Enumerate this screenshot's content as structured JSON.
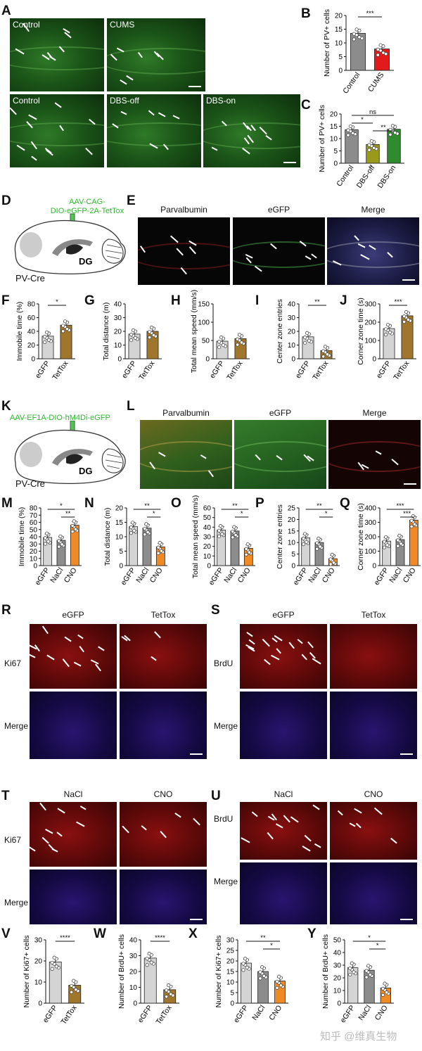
{
  "panel_letters": {
    "A": "A",
    "B": "B",
    "C": "C",
    "D": "D",
    "E": "E",
    "F": "F",
    "G": "G",
    "H": "H",
    "I": "I",
    "J": "J",
    "K": "K",
    "L": "L",
    "M": "M",
    "N": "N",
    "O": "O",
    "P": "P",
    "Q": "Q",
    "R": "R",
    "S": "S",
    "T": "T",
    "U": "U",
    "V": "V",
    "W": "W",
    "X": "X",
    "Y": "Y"
  },
  "panelA": {
    "img1": "Control",
    "img2": "CUMS",
    "img3": "Control",
    "img4": "DBS-off",
    "img5": "DBS-on"
  },
  "panelD": {
    "virus": "AAV-CAG-\nDIO-eGFP-2A-TetTox",
    "region": "DG",
    "mouse": "PV-Cre"
  },
  "panelE": {
    "c1": "Parvalbumin",
    "c2": "eGFP",
    "c3": "Merge"
  },
  "panelK": {
    "virus": "AAV-EF1A-DIO-hM4Di-eGFP",
    "region": "DG",
    "mouse": "PV-Cre"
  },
  "panelL": {
    "c1": "Parvalbumin",
    "c2": "eGFP",
    "c3": "Merge"
  },
  "panelR": {
    "c1": "eGFP",
    "c2": "TetTox",
    "row1": "Ki67",
    "row2": "Merge"
  },
  "panelS": {
    "c1": "eGFP",
    "c2": "TetTox",
    "row1": "BrdU",
    "row2": "Merge"
  },
  "panelT": {
    "c1": "NaCl",
    "c2": "CNO",
    "row1": "Ki67",
    "row2": "Merge"
  },
  "panelU": {
    "c1": "NaCl",
    "c2": "CNO",
    "row1": "BrdU",
    "row2": "Merge"
  },
  "watermark": "知乎 @维真生物",
  "colors": {
    "grey": "#8c8c8c",
    "lightgrey": "#d4d4d4",
    "red": "#e31a1c",
    "olive": "#9a9a1a",
    "green": "#2e8b2e",
    "brown": "#a0762c",
    "orange": "#f08a24"
  },
  "chart_data": [
    {
      "id": "B",
      "type": "bar",
      "ylabel": "Number of PV+ cells",
      "categories": [
        "Control",
        "CUMS"
      ],
      "values": [
        13.5,
        7.8
      ],
      "ylim": [
        0,
        20
      ],
      "ticks": [
        0,
        5,
        10,
        15,
        20
      ],
      "sig": [
        {
          "a": 0,
          "b": 1,
          "label": "***"
        }
      ]
    },
    {
      "id": "C",
      "type": "bar",
      "ylabel": "Number of PV+ cells",
      "categories": [
        "Control",
        "DBS-off",
        "DBS-on"
      ],
      "values": [
        13.6,
        7.6,
        13.8
      ],
      "ylim": [
        0,
        20
      ],
      "ticks": [
        0,
        5,
        10,
        15,
        20
      ],
      "sig": [
        {
          "a": 0,
          "b": 2,
          "label": "ns"
        },
        {
          "a": 0,
          "b": 1,
          "label": "*"
        },
        {
          "a": 1,
          "b": 2,
          "label": "**"
        }
      ]
    },
    {
      "id": "F",
      "type": "bar",
      "ylabel": "Immobile time (%)",
      "categories": [
        "eGFP",
        "TetTox"
      ],
      "values": [
        33,
        49
      ],
      "ylim": [
        0,
        80
      ],
      "ticks": [
        0,
        20,
        40,
        60,
        80
      ],
      "sig": [
        {
          "a": 0,
          "b": 1,
          "label": "*"
        }
      ]
    },
    {
      "id": "G",
      "type": "bar",
      "ylabel": "Total distance (m)",
      "categories": [
        "eGFP",
        "TetTox"
      ],
      "values": [
        18,
        20
      ],
      "ylim": [
        0,
        40
      ],
      "ticks": [
        0,
        10,
        20,
        30,
        40
      ],
      "sig": []
    },
    {
      "id": "H",
      "type": "bar",
      "ylabel": "Total mean speed (mm/s)",
      "categories": [
        "eGFP",
        "TetTox"
      ],
      "values": [
        48,
        55
      ],
      "ylim": [
        0,
        150
      ],
      "ticks": [
        0,
        50,
        100,
        150
      ],
      "sig": []
    },
    {
      "id": "I",
      "type": "bar",
      "ylabel": "Center zone entries",
      "categories": [
        "eGFP",
        "TetTox"
      ],
      "values": [
        16,
        6
      ],
      "ylim": [
        0,
        40
      ],
      "ticks": [
        0,
        10,
        20,
        30,
        40
      ],
      "sig": [
        {
          "a": 0,
          "b": 1,
          "label": "**"
        }
      ]
    },
    {
      "id": "J",
      "type": "bar",
      "ylabel": "Corner zone time (s)",
      "categories": [
        "eGFP",
        "TetTox"
      ],
      "values": [
        165,
        235
      ],
      "ylim": [
        0,
        300
      ],
      "ticks": [
        0,
        100,
        200,
        300
      ],
      "sig": [
        {
          "a": 0,
          "b": 1,
          "label": "***"
        }
      ]
    },
    {
      "id": "M",
      "type": "bar",
      "ylabel": "Immobile time (%)",
      "categories": [
        "eGFP",
        "NaCl",
        "CNO"
      ],
      "values": [
        39,
        35,
        56
      ],
      "ylim": [
        0,
        80
      ],
      "ticks": [
        0,
        10,
        20,
        30,
        40,
        50,
        60,
        70,
        80
      ],
      "sig": [
        {
          "a": 0,
          "b": 2,
          "label": "*"
        },
        {
          "a": 1,
          "b": 2,
          "label": "**"
        }
      ]
    },
    {
      "id": "N",
      "type": "bar",
      "ylabel": "Total distance (m)",
      "categories": [
        "eGFP",
        "NaCl",
        "CNO"
      ],
      "values": [
        13.5,
        13,
        6.5
      ],
      "ylim": [
        0,
        20
      ],
      "ticks": [
        0,
        5,
        10,
        15,
        20
      ],
      "sig": [
        {
          "a": 0,
          "b": 2,
          "label": "**"
        },
        {
          "a": 1,
          "b": 2,
          "label": "*"
        }
      ]
    },
    {
      "id": "O",
      "type": "bar",
      "ylabel": "Total mean speed (mm/s)",
      "categories": [
        "eGFP",
        "NaCl",
        "CNO"
      ],
      "values": [
        37,
        36,
        18
      ],
      "ylim": [
        0,
        60
      ],
      "ticks": [
        0,
        10,
        20,
        30,
        40,
        50,
        60
      ],
      "sig": [
        {
          "a": 0,
          "b": 2,
          "label": "**"
        },
        {
          "a": 1,
          "b": 2,
          "label": "*"
        }
      ]
    },
    {
      "id": "P",
      "type": "bar",
      "ylabel": "Center zone entries",
      "categories": [
        "eGFP",
        "NaCl",
        "CNO"
      ],
      "values": [
        12,
        10,
        3
      ],
      "ylim": [
        0,
        25
      ],
      "ticks": [
        0,
        5,
        10,
        15,
        20,
        25
      ],
      "sig": [
        {
          "a": 0,
          "b": 2,
          "label": "**"
        },
        {
          "a": 1,
          "b": 2,
          "label": "*"
        }
      ]
    },
    {
      "id": "Q",
      "type": "bar",
      "ylabel": "Corner zone time (s)",
      "categories": [
        "eGFP",
        "NaCl",
        "CNO"
      ],
      "values": [
        170,
        180,
        315
      ],
      "ylim": [
        0,
        400
      ],
      "ticks": [
        0,
        100,
        200,
        300,
        400
      ],
      "sig": [
        {
          "a": 0,
          "b": 2,
          "label": "***"
        },
        {
          "a": 1,
          "b": 2,
          "label": "***"
        }
      ]
    },
    {
      "id": "V",
      "type": "bar",
      "ylabel": "Number of Ki67+ cells",
      "categories": [
        "eGFP",
        "TetTox"
      ],
      "values": [
        19.5,
        8.5
      ],
      "ylim": [
        0,
        30
      ],
      "ticks": [
        0,
        10,
        20,
        30
      ],
      "sig": [
        {
          "a": 0,
          "b": 1,
          "label": "****"
        }
      ]
    },
    {
      "id": "W",
      "type": "bar",
      "ylabel": "Number of BrdU+ cells",
      "categories": [
        "eGFP",
        "TetTox"
      ],
      "values": [
        28.5,
        8.5
      ],
      "ylim": [
        0,
        40
      ],
      "ticks": [
        0,
        10,
        20,
        30,
        40
      ],
      "sig": [
        {
          "a": 0,
          "b": 1,
          "label": "****"
        }
      ]
    },
    {
      "id": "X",
      "type": "bar",
      "ylabel": "Number of Ki67+ cells",
      "categories": [
        "eGFP",
        "NaCl",
        "CNO"
      ],
      "values": [
        19,
        15,
        10.5
      ],
      "ylim": [
        0,
        30
      ],
      "ticks": [
        0,
        5,
        10,
        15,
        20,
        25,
        30
      ],
      "sig": [
        {
          "a": 0,
          "b": 2,
          "label": "**"
        },
        {
          "a": 1,
          "b": 2,
          "label": "*"
        }
      ]
    },
    {
      "id": "Y",
      "type": "bar",
      "ylabel": "Number of BrdU+ cells",
      "categories": [
        "eGFP",
        "NaCl",
        "CNO"
      ],
      "values": [
        28,
        26,
        12
      ],
      "ylim": [
        0,
        50
      ],
      "ticks": [
        0,
        10,
        20,
        30,
        40,
        50
      ],
      "sig": [
        {
          "a": 0,
          "b": 2,
          "label": "*"
        },
        {
          "a": 1,
          "b": 2,
          "label": "*"
        }
      ]
    }
  ]
}
